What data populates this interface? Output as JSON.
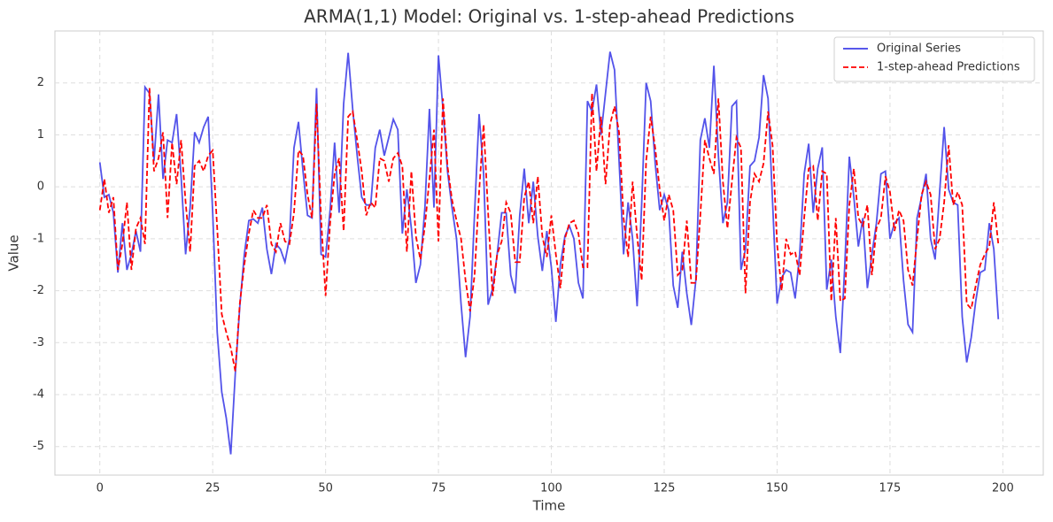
{
  "chart_data": {
    "type": "line",
    "title": "ARMA(1,1) Model: Original vs. 1-step-ahead Predictions",
    "xlabel": "Time",
    "ylabel": "Value",
    "x": [
      0,
      1,
      2,
      3,
      4,
      5,
      6,
      7,
      8,
      9,
      10,
      11,
      12,
      13,
      14,
      15,
      16,
      17,
      18,
      19,
      20,
      21,
      22,
      23,
      24,
      25,
      26,
      27,
      28,
      29,
      30,
      31,
      32,
      33,
      34,
      35,
      36,
      37,
      38,
      39,
      40,
      41,
      42,
      43,
      44,
      45,
      46,
      47,
      48,
      49,
      50,
      51,
      52,
      53,
      54,
      55,
      56,
      57,
      58,
      59,
      60,
      61,
      62,
      63,
      64,
      65,
      66,
      67,
      68,
      69,
      70,
      71,
      72,
      73,
      74,
      75,
      76,
      77,
      78,
      79,
      80,
      81,
      82,
      83,
      84,
      85,
      86,
      87,
      88,
      89,
      90,
      91,
      92,
      93,
      94,
      95,
      96,
      97,
      98,
      99,
      100,
      101,
      102,
      103,
      104,
      105,
      106,
      107,
      108,
      109,
      110,
      111,
      112,
      113,
      114,
      115,
      116,
      117,
      118,
      119,
      120,
      121,
      122,
      123,
      124,
      125,
      126,
      127,
      128,
      129,
      130,
      131,
      132,
      133,
      134,
      135,
      136,
      137,
      138,
      139,
      140,
      141,
      142,
      143,
      144,
      145,
      146,
      147,
      148,
      149,
      150,
      151,
      152,
      153,
      154,
      155,
      156,
      157,
      158,
      159,
      160,
      161,
      162,
      163,
      164,
      165,
      166,
      167,
      168,
      169,
      170,
      171,
      172,
      173,
      174,
      175,
      176,
      177,
      178,
      179,
      180,
      181,
      182,
      183,
      184,
      185,
      186,
      187,
      188,
      189,
      190,
      191,
      192,
      193,
      194,
      195,
      196,
      197,
      198,
      199
    ],
    "series": [
      {
        "name": "Original Series",
        "color": "#4040e8",
        "dash": "solid",
        "values": [
          0.47,
          -0.2,
          -0.15,
          -0.5,
          -1.65,
          -0.7,
          -1.6,
          -1.3,
          -0.85,
          -1.25,
          1.92,
          1.8,
          0.5,
          1.78,
          0.15,
          0.9,
          0.85,
          1.4,
          0.2,
          -1.3,
          -0.4,
          1.05,
          0.85,
          1.15,
          1.35,
          -0.5,
          -2.8,
          -3.95,
          -4.45,
          -5.15,
          -3.6,
          -2.3,
          -1.3,
          -0.65,
          -0.62,
          -0.7,
          -0.4,
          -1.2,
          -1.68,
          -1.1,
          -1.2,
          -1.45,
          -1.0,
          0.75,
          1.25,
          0.3,
          -0.55,
          -0.6,
          1.9,
          -1.3,
          -1.35,
          -0.45,
          0.85,
          -0.5,
          1.6,
          2.58,
          1.5,
          0.6,
          -0.2,
          -0.35,
          -0.35,
          0.75,
          1.1,
          0.6,
          0.95,
          1.3,
          1.1,
          -0.9,
          -0.05,
          -0.8,
          -1.85,
          -1.5,
          -0.4,
          1.5,
          -0.4,
          2.53,
          1.5,
          0.3,
          -0.4,
          -1.0,
          -2.25,
          -3.28,
          -2.5,
          -0.5,
          1.4,
          0.25,
          -2.27,
          -1.95,
          -1.3,
          -0.5,
          -0.5,
          -1.7,
          -2.05,
          -0.55,
          0.35,
          -0.7,
          0.1,
          -0.95,
          -1.62,
          -0.85,
          -1.55,
          -2.6,
          -1.5,
          -0.95,
          -0.75,
          -1.0,
          -1.85,
          -2.15,
          1.65,
          1.45,
          1.97,
          1.0,
          1.8,
          2.6,
          2.25,
          0.5,
          -1.3,
          -0.3,
          -1.0,
          -2.3,
          -0.35,
          2.0,
          1.65,
          0.45,
          -0.45,
          -0.15,
          -0.45,
          -1.9,
          -2.33,
          -1.25,
          -2.05,
          -2.66,
          -1.8,
          0.9,
          1.32,
          0.75,
          2.33,
          0.6,
          -0.7,
          -0.3,
          1.55,
          1.65,
          -1.6,
          -1.2,
          0.4,
          0.5,
          0.95,
          2.15,
          1.7,
          -0.3,
          -2.25,
          -1.75,
          -1.6,
          -1.65,
          -2.15,
          -1.3,
          0.25,
          0.83,
          -0.5,
          0.35,
          0.76,
          -1.98,
          -1.4,
          -2.5,
          -3.2,
          -1.5,
          0.58,
          -0.2,
          -1.15,
          -0.6,
          -1.95,
          -1.3,
          -0.7,
          0.25,
          0.3,
          -1.0,
          -0.7,
          -0.6,
          -1.8,
          -2.65,
          -2.8,
          -0.6,
          -0.2,
          0.25,
          -1.0,
          -1.4,
          -0.1,
          1.15,
          -0.05,
          -0.3,
          -0.35,
          -2.5,
          -3.38,
          -2.9,
          -2.2,
          -1.65,
          -1.6,
          -0.7,
          -1.2,
          -2.55
        ]
      },
      {
        "name": "1-step-ahead Predictions",
        "color": "#ff0000",
        "dash": "dashed",
        "values": [
          -0.45,
          0.15,
          -0.5,
          -0.2,
          -1.6,
          -1.1,
          -0.3,
          -1.6,
          -0.8,
          -0.6,
          -1.1,
          1.9,
          0.3,
          0.55,
          1.05,
          -0.6,
          0.85,
          0.05,
          0.9,
          -0.3,
          -1.25,
          0.4,
          0.5,
          0.3,
          0.6,
          0.7,
          -0.8,
          -2.45,
          -2.8,
          -3.1,
          -3.55,
          -2.25,
          -1.5,
          -0.9,
          -0.45,
          -0.6,
          -0.6,
          -0.35,
          -1.1,
          -1.25,
          -0.7,
          -1.05,
          -1.1,
          -0.5,
          0.7,
          0.6,
          -0.15,
          -0.6,
          1.6,
          -0.6,
          -2.1,
          -0.7,
          0.25,
          0.55,
          -0.85,
          1.35,
          1.45,
          0.9,
          0.3,
          -0.55,
          -0.3,
          -0.4,
          0.55,
          0.5,
          0.1,
          0.55,
          0.65,
          0.4,
          -1.25,
          0.3,
          -0.95,
          -1.4,
          -0.75,
          0.15,
          1.1,
          -1.05,
          1.7,
          0.4,
          -0.25,
          -0.65,
          -1.0,
          -1.8,
          -2.4,
          -1.7,
          -0.1,
          1.2,
          -0.5,
          -2.1,
          -1.3,
          -1.05,
          -0.3,
          -0.5,
          -1.45,
          -1.45,
          -0.2,
          0.1,
          -0.7,
          0.2,
          -0.95,
          -1.35,
          -0.55,
          -1.3,
          -1.95,
          -1.0,
          -0.7,
          -0.65,
          -0.9,
          -1.55,
          -1.55,
          1.8,
          0.3,
          1.35,
          0.05,
          1.2,
          1.55,
          1.05,
          -0.6,
          -1.35,
          0.1,
          -0.95,
          -1.8,
          0.5,
          1.35,
          0.75,
          -0.05,
          -0.65,
          -0.15,
          -0.45,
          -1.7,
          -1.6,
          -0.65,
          -1.85,
          -1.85,
          -0.55,
          0.9,
          0.55,
          0.25,
          1.7,
          0.1,
          -0.8,
          0.1,
          0.95,
          0.75,
          -2.05,
          -0.3,
          0.25,
          0.1,
          0.45,
          1.45,
          0.8,
          -1.1,
          -2.0,
          -1.0,
          -1.3,
          -1.25,
          -1.7,
          -0.6,
          0.35,
          0.4,
          -0.65,
          0.3,
          0.25,
          -2.2,
          -0.6,
          -2.2,
          -2.15,
          -0.35,
          0.35,
          -0.6,
          -0.75,
          -0.35,
          -1.7,
          -0.8,
          -0.6,
          0.2,
          -0.1,
          -0.85,
          -0.45,
          -0.65,
          -1.6,
          -1.9,
          -1.0,
          -0.15,
          0.1,
          -0.15,
          -1.2,
          -1.0,
          -0.3,
          0.8,
          -0.35,
          -0.1,
          -0.35,
          -2.25,
          -2.35,
          -1.9,
          -1.5,
          -1.3,
          -1.15,
          -0.3,
          -1.1
        ]
      }
    ],
    "xlim": [
      -9.95,
      208.95
    ],
    "ylim": [
      -5.55,
      3.0
    ],
    "xticks": [
      0,
      25,
      50,
      75,
      100,
      125,
      150,
      175,
      200
    ],
    "yticks": [
      -5,
      -4,
      -3,
      -2,
      -1,
      0,
      1,
      2
    ],
    "grid": true,
    "legend": "upper right"
  }
}
